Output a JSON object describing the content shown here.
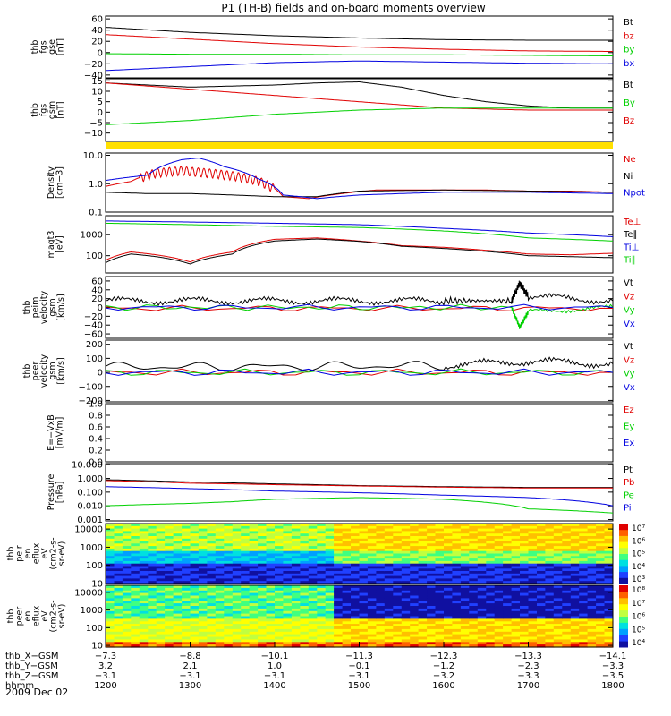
{
  "title": "P1 (TH-B) fields and on-board moments overview",
  "date_label": "2009 Dec 02",
  "colors": {
    "black": "#000000",
    "red": "#e00000",
    "green": "#00d000",
    "blue": "#0000e0",
    "yellow": "#ffe000"
  },
  "chart_data": [
    {
      "type": "line",
      "name": "fgs-gse",
      "ylabel": [
        "thb",
        "fgs",
        "gse",
        "[nT]"
      ],
      "yticks": [
        "60",
        "40",
        "20",
        "0",
        "−20",
        "−40"
      ],
      "ylim": [
        -45,
        65
      ],
      "legend": [
        {
          "label": "Bt",
          "color": "black"
        },
        {
          "label": "bz",
          "color": "red"
        },
        {
          "label": "by",
          "color": "green"
        },
        {
          "label": "bx",
          "color": "blue"
        }
      ],
      "series": [
        {
          "name": "Bt",
          "color": "black",
          "x": [
            1200,
            1300,
            1400,
            1500,
            1600,
            1700,
            1800
          ],
          "y": [
            45,
            36,
            30,
            26,
            23,
            22,
            22
          ]
        },
        {
          "name": "bz",
          "color": "red",
          "x": [
            1200,
            1300,
            1400,
            1500,
            1600,
            1700,
            1800
          ],
          "y": [
            32,
            24,
            16,
            10,
            6,
            3,
            2
          ]
        },
        {
          "name": "by",
          "color": "green",
          "x": [
            1200,
            1300,
            1400,
            1500,
            1600,
            1700,
            1800
          ],
          "y": [
            -2,
            -3,
            -3,
            -4,
            -4,
            -5,
            -6
          ]
        },
        {
          "name": "bx",
          "color": "blue",
          "x": [
            1200,
            1300,
            1400,
            1500,
            1600,
            1700,
            1800
          ],
          "y": [
            -32,
            -25,
            -18,
            -15,
            -17,
            -19,
            -20
          ]
        }
      ]
    },
    {
      "type": "line",
      "name": "fgs-gsm",
      "ylabel": [
        "thb",
        "fgs",
        "gsm",
        "[nT]"
      ],
      "yticks": [
        "15",
        "10",
        "5",
        "0",
        "−5",
        "−10"
      ],
      "ylim": [
        -14,
        16
      ],
      "legend": [
        {
          "label": "Bt",
          "color": "black"
        },
        {
          "label": "By",
          "color": "green"
        },
        {
          "label": "Bz",
          "color": "red"
        }
      ],
      "series": [
        {
          "name": "Bt",
          "color": "black",
          "x": [
            1200,
            1250,
            1300,
            1350,
            1400,
            1450,
            1500,
            1550,
            1600,
            1650,
            1700,
            1750,
            1800
          ],
          "y": [
            14,
            13,
            12,
            12.5,
            13,
            14,
            14.5,
            12,
            8,
            5,
            3,
            2,
            2
          ]
        },
        {
          "name": "Bz",
          "color": "red",
          "x": [
            1200,
            1300,
            1400,
            1500,
            1600,
            1700,
            1800
          ],
          "y": [
            14,
            11,
            8,
            5,
            2,
            1,
            1
          ]
        },
        {
          "name": "By",
          "color": "green",
          "x": [
            1200,
            1300,
            1400,
            1500,
            1600,
            1700,
            1800
          ],
          "y": [
            -6,
            -4,
            -1,
            1,
            2,
            2,
            2
          ]
        }
      ]
    },
    {
      "type": "line",
      "name": "density",
      "ylabel": [
        "Density",
        "[cm−3]"
      ],
      "yticks": [
        "10.0",
        "1.0",
        "0.1"
      ],
      "ylim": [
        0.1,
        12
      ],
      "yscale": "log",
      "legend": [
        {
          "label": "Ne",
          "color": "red"
        },
        {
          "label": "Ni",
          "color": "black"
        },
        {
          "label": "Npot",
          "color": "blue"
        }
      ],
      "series": [
        {
          "name": "Ne",
          "color": "red",
          "x": [
            1200,
            1230,
            1260,
            1290,
            1320,
            1350,
            1380,
            1410,
            1440,
            1480,
            1520,
            1560,
            1600,
            1650,
            1700,
            1750,
            1800
          ],
          "y": [
            0.8,
            1.2,
            2.5,
            3,
            2.5,
            2,
            1.3,
            0.35,
            0.3,
            0.45,
            0.6,
            0.6,
            0.6,
            0.6,
            0.55,
            0.55,
            0.5
          ]
        },
        {
          "name": "Ni",
          "color": "black",
          "x": [
            1200,
            1250,
            1300,
            1350,
            1400,
            1450,
            1500,
            1600,
            1700,
            1800
          ],
          "y": [
            0.5,
            0.45,
            0.45,
            0.4,
            0.35,
            0.35,
            0.55,
            0.6,
            0.55,
            0.5
          ]
        },
        {
          "name": "Npot",
          "color": "blue",
          "x": [
            1200,
            1250,
            1290,
            1310,
            1340,
            1380,
            1410,
            1450,
            1500,
            1600,
            1700,
            1800
          ],
          "y": [
            1.3,
            2,
            7,
            8,
            4,
            1.5,
            0.4,
            0.3,
            0.4,
            0.5,
            0.5,
            0.45
          ]
        }
      ]
    },
    {
      "type": "line",
      "name": "temperature",
      "ylabel": [
        "magt3",
        "[eV]"
      ],
      "yticks": [
        "1000",
        "100"
      ],
      "ylim": [
        15,
        8000
      ],
      "yscale": "log",
      "legend": [
        {
          "label": "Te⊥",
          "color": "red"
        },
        {
          "label": "Te∥",
          "color": "black"
        },
        {
          "label": "Ti⊥",
          "color": "blue"
        },
        {
          "label": "Ti∥",
          "color": "green"
        }
      ],
      "series": [
        {
          "name": "Ti⊥",
          "color": "blue",
          "x": [
            1200,
            1300,
            1400,
            1500,
            1600,
            1700,
            1800
          ],
          "y": [
            4500,
            4000,
            3500,
            3000,
            2000,
            1200,
            800
          ]
        },
        {
          "name": "Ti∥",
          "color": "green",
          "x": [
            1200,
            1300,
            1400,
            1500,
            1600,
            1700,
            1800
          ],
          "y": [
            3500,
            3000,
            2500,
            2200,
            1500,
            700,
            500
          ]
        },
        {
          "name": "Te⊥",
          "color": "red",
          "x": [
            1200,
            1230,
            1260,
            1300,
            1350,
            1400,
            1450,
            1500,
            1550,
            1600,
            1650,
            1700,
            1750,
            1800
          ],
          "y": [
            60,
            150,
            110,
            50,
            150,
            600,
            700,
            500,
            300,
            250,
            180,
            120,
            110,
            130
          ]
        },
        {
          "name": "Te∥",
          "color": "black",
          "x": [
            1200,
            1230,
            1260,
            1300,
            1350,
            1400,
            1450,
            1500,
            1550,
            1600,
            1650,
            1700,
            1750,
            1800
          ],
          "y": [
            45,
            120,
            90,
            40,
            120,
            500,
            620,
            480,
            280,
            220,
            160,
            100,
            90,
            80
          ]
        }
      ]
    },
    {
      "type": "line",
      "name": "peim-velocity-gsm",
      "ylabel": [
        "thb",
        "peim",
        "velocity",
        "gsm",
        "[km/s]"
      ],
      "yticks": [
        "60",
        "40",
        "20",
        "0",
        "−20",
        "−40",
        "−60"
      ],
      "ylim": [
        -70,
        70
      ],
      "legend": [
        {
          "label": "Vt",
          "color": "black"
        },
        {
          "label": "Vz",
          "color": "red"
        },
        {
          "label": "Vy",
          "color": "green"
        },
        {
          "label": "Vx",
          "color": "blue"
        }
      ],
      "series": [
        {
          "name": "Vt",
          "color": "black",
          "x": [
            1200,
            1300,
            1400,
            1500,
            1600,
            1680,
            1690,
            1700,
            1800
          ],
          "y": [
            15,
            15,
            15,
            15,
            15,
            15,
            55,
            25,
            15
          ]
        },
        {
          "name": "Vz",
          "color": "red",
          "x": [
            1200,
            1800
          ],
          "y": [
            -2,
            -2
          ]
        },
        {
          "name": "Vy",
          "color": "green",
          "x": [
            1200,
            1680,
            1690,
            1700,
            1800
          ],
          "y": [
            0,
            0,
            -45,
            -10,
            0
          ]
        },
        {
          "name": "Vx",
          "color": "blue",
          "x": [
            1200,
            1800
          ],
          "y": [
            0,
            0
          ]
        }
      ]
    },
    {
      "type": "line",
      "name": "peer-velocity-gsm",
      "ylabel": [
        "thb",
        "peer",
        "velocity",
        "gsm",
        "[km/s]"
      ],
      "yticks": [
        "200",
        "100",
        "0",
        "−100",
        "−200"
      ],
      "ylim": [
        -210,
        230
      ],
      "legend": [
        {
          "label": "Vt",
          "color": "black"
        },
        {
          "label": "Vz",
          "color": "red"
        },
        {
          "label": "Vy",
          "color": "green"
        },
        {
          "label": "Vx",
          "color": "blue"
        }
      ],
      "series": [
        {
          "name": "Vt",
          "color": "black",
          "x": [
            1200,
            1400,
            1600,
            1700,
            1800
          ],
          "y": [
            40,
            40,
            50,
            80,
            60
          ]
        },
        {
          "name": "Vz",
          "color": "red",
          "x": [
            1200,
            1800
          ],
          "y": [
            0,
            0
          ]
        },
        {
          "name": "Vy",
          "color": "green",
          "x": [
            1200,
            1800
          ],
          "y": [
            0,
            0
          ]
        },
        {
          "name": "Vx",
          "color": "blue",
          "x": [
            1200,
            1800
          ],
          "y": [
            0,
            0
          ]
        }
      ]
    },
    {
      "type": "line",
      "name": "efield",
      "ylabel": [
        "E=−VxB",
        "[mV/m]"
      ],
      "yticks": [
        "1.0",
        "0.8",
        "0.6",
        "0.4",
        "0.2",
        "0.0"
      ],
      "ylim": [
        0,
        1
      ],
      "legend": [
        {
          "label": "Ez",
          "color": "red"
        },
        {
          "label": "Ey",
          "color": "green"
        },
        {
          "label": "Ex",
          "color": "blue"
        }
      ],
      "series": []
    },
    {
      "type": "line",
      "name": "pressure",
      "ylabel": [
        "Pressure",
        "[nPa]"
      ],
      "yticks": [
        "10.000",
        "1.000",
        "0.100",
        "0.010",
        "0.001"
      ],
      "ylim": [
        0.0008,
        12
      ],
      "yscale": "log",
      "legend": [
        {
          "label": "Pt",
          "color": "black"
        },
        {
          "label": "Pb",
          "color": "red"
        },
        {
          "label": "Pe",
          "color": "green"
        },
        {
          "label": "Pi",
          "color": "blue"
        }
      ],
      "series": [
        {
          "name": "Pt",
          "color": "black",
          "x": [
            1200,
            1300,
            1400,
            1500,
            1600,
            1700,
            1800
          ],
          "y": [
            0.8,
            0.55,
            0.4,
            0.3,
            0.25,
            0.22,
            0.22
          ]
        },
        {
          "name": "Pb",
          "color": "red",
          "x": [
            1200,
            1300,
            1400,
            1500,
            1600,
            1700,
            1800
          ],
          "y": [
            0.7,
            0.45,
            0.35,
            0.28,
            0.23,
            0.2,
            0.2
          ]
        },
        {
          "name": "Pi",
          "color": "blue",
          "x": [
            1200,
            1300,
            1400,
            1500,
            1600,
            1700,
            1800
          ],
          "y": [
            0.25,
            0.18,
            0.12,
            0.09,
            0.06,
            0.04,
            0.01
          ]
        },
        {
          "name": "Pe",
          "color": "green",
          "x": [
            1200,
            1300,
            1350,
            1400,
            1500,
            1600,
            1700,
            1800
          ],
          "y": [
            0.01,
            0.015,
            0.02,
            0.03,
            0.04,
            0.03,
            0.006,
            0.003
          ]
        }
      ]
    },
    {
      "type": "heatmap",
      "name": "peir-en-eflux",
      "ylabel": [
        "thb",
        "peir",
        "en",
        "eflux",
        "eV",
        "(cm2-s-",
        "sr-eV)"
      ],
      "yticks": [
        "10000",
        "1000",
        "100",
        "10"
      ],
      "ylim": [
        10,
        20000
      ],
      "yscale": "log",
      "colorbar_ticks": [
        "10⁷",
        "10⁶",
        "10⁵",
        "10⁴",
        "10³"
      ],
      "description_bands": [
        {
          "y_low": 1000,
          "y_high": 20000,
          "x_from": 1200,
          "x_to": 1500,
          "level": 0.55
        },
        {
          "y_low": 1000,
          "y_high": 20000,
          "x_from": 1500,
          "x_to": 1800,
          "level": 0.75
        }
      ]
    },
    {
      "type": "heatmap",
      "name": "peer-en-eflux",
      "ylabel": [
        "thb",
        "peer",
        "en",
        "eflux",
        "eV",
        "(cm2-s-",
        "sr-eV)"
      ],
      "yticks": [
        "10000",
        "1000",
        "100",
        "10"
      ],
      "ylim": [
        8,
        25000
      ],
      "yscale": "log",
      "colorbar_ticks": [
        "10⁸",
        "10⁷",
        "10⁶",
        "10⁵",
        "10⁴"
      ]
    }
  ],
  "x_axis": {
    "row_labels": [
      "thb_X−GSM",
      "thb_Y−GSM",
      "thb_Z−GSM",
      "hhmm"
    ],
    "ticks": [
      {
        "hhmm": "1200",
        "x": "−7.3",
        "y": "3.2",
        "z": "−3.1"
      },
      {
        "hhmm": "1300",
        "x": "−8.8",
        "y": "2.1",
        "z": "−3.1"
      },
      {
        "hhmm": "1400",
        "x": "−10.1",
        "y": "1.0",
        "z": "−3.1"
      },
      {
        "hhmm": "1500",
        "x": "−11.3",
        "y": "−0.1",
        "z": "−3.1"
      },
      {
        "hhmm": "1600",
        "x": "−12.3",
        "y": "−1.2",
        "z": "−3.2"
      },
      {
        "hhmm": "1700",
        "x": "−13.3",
        "y": "−2.3",
        "z": "−3.3"
      },
      {
        "hhmm": "1800",
        "x": "−14.1",
        "y": "−3.3",
        "z": "−3.5"
      }
    ]
  }
}
